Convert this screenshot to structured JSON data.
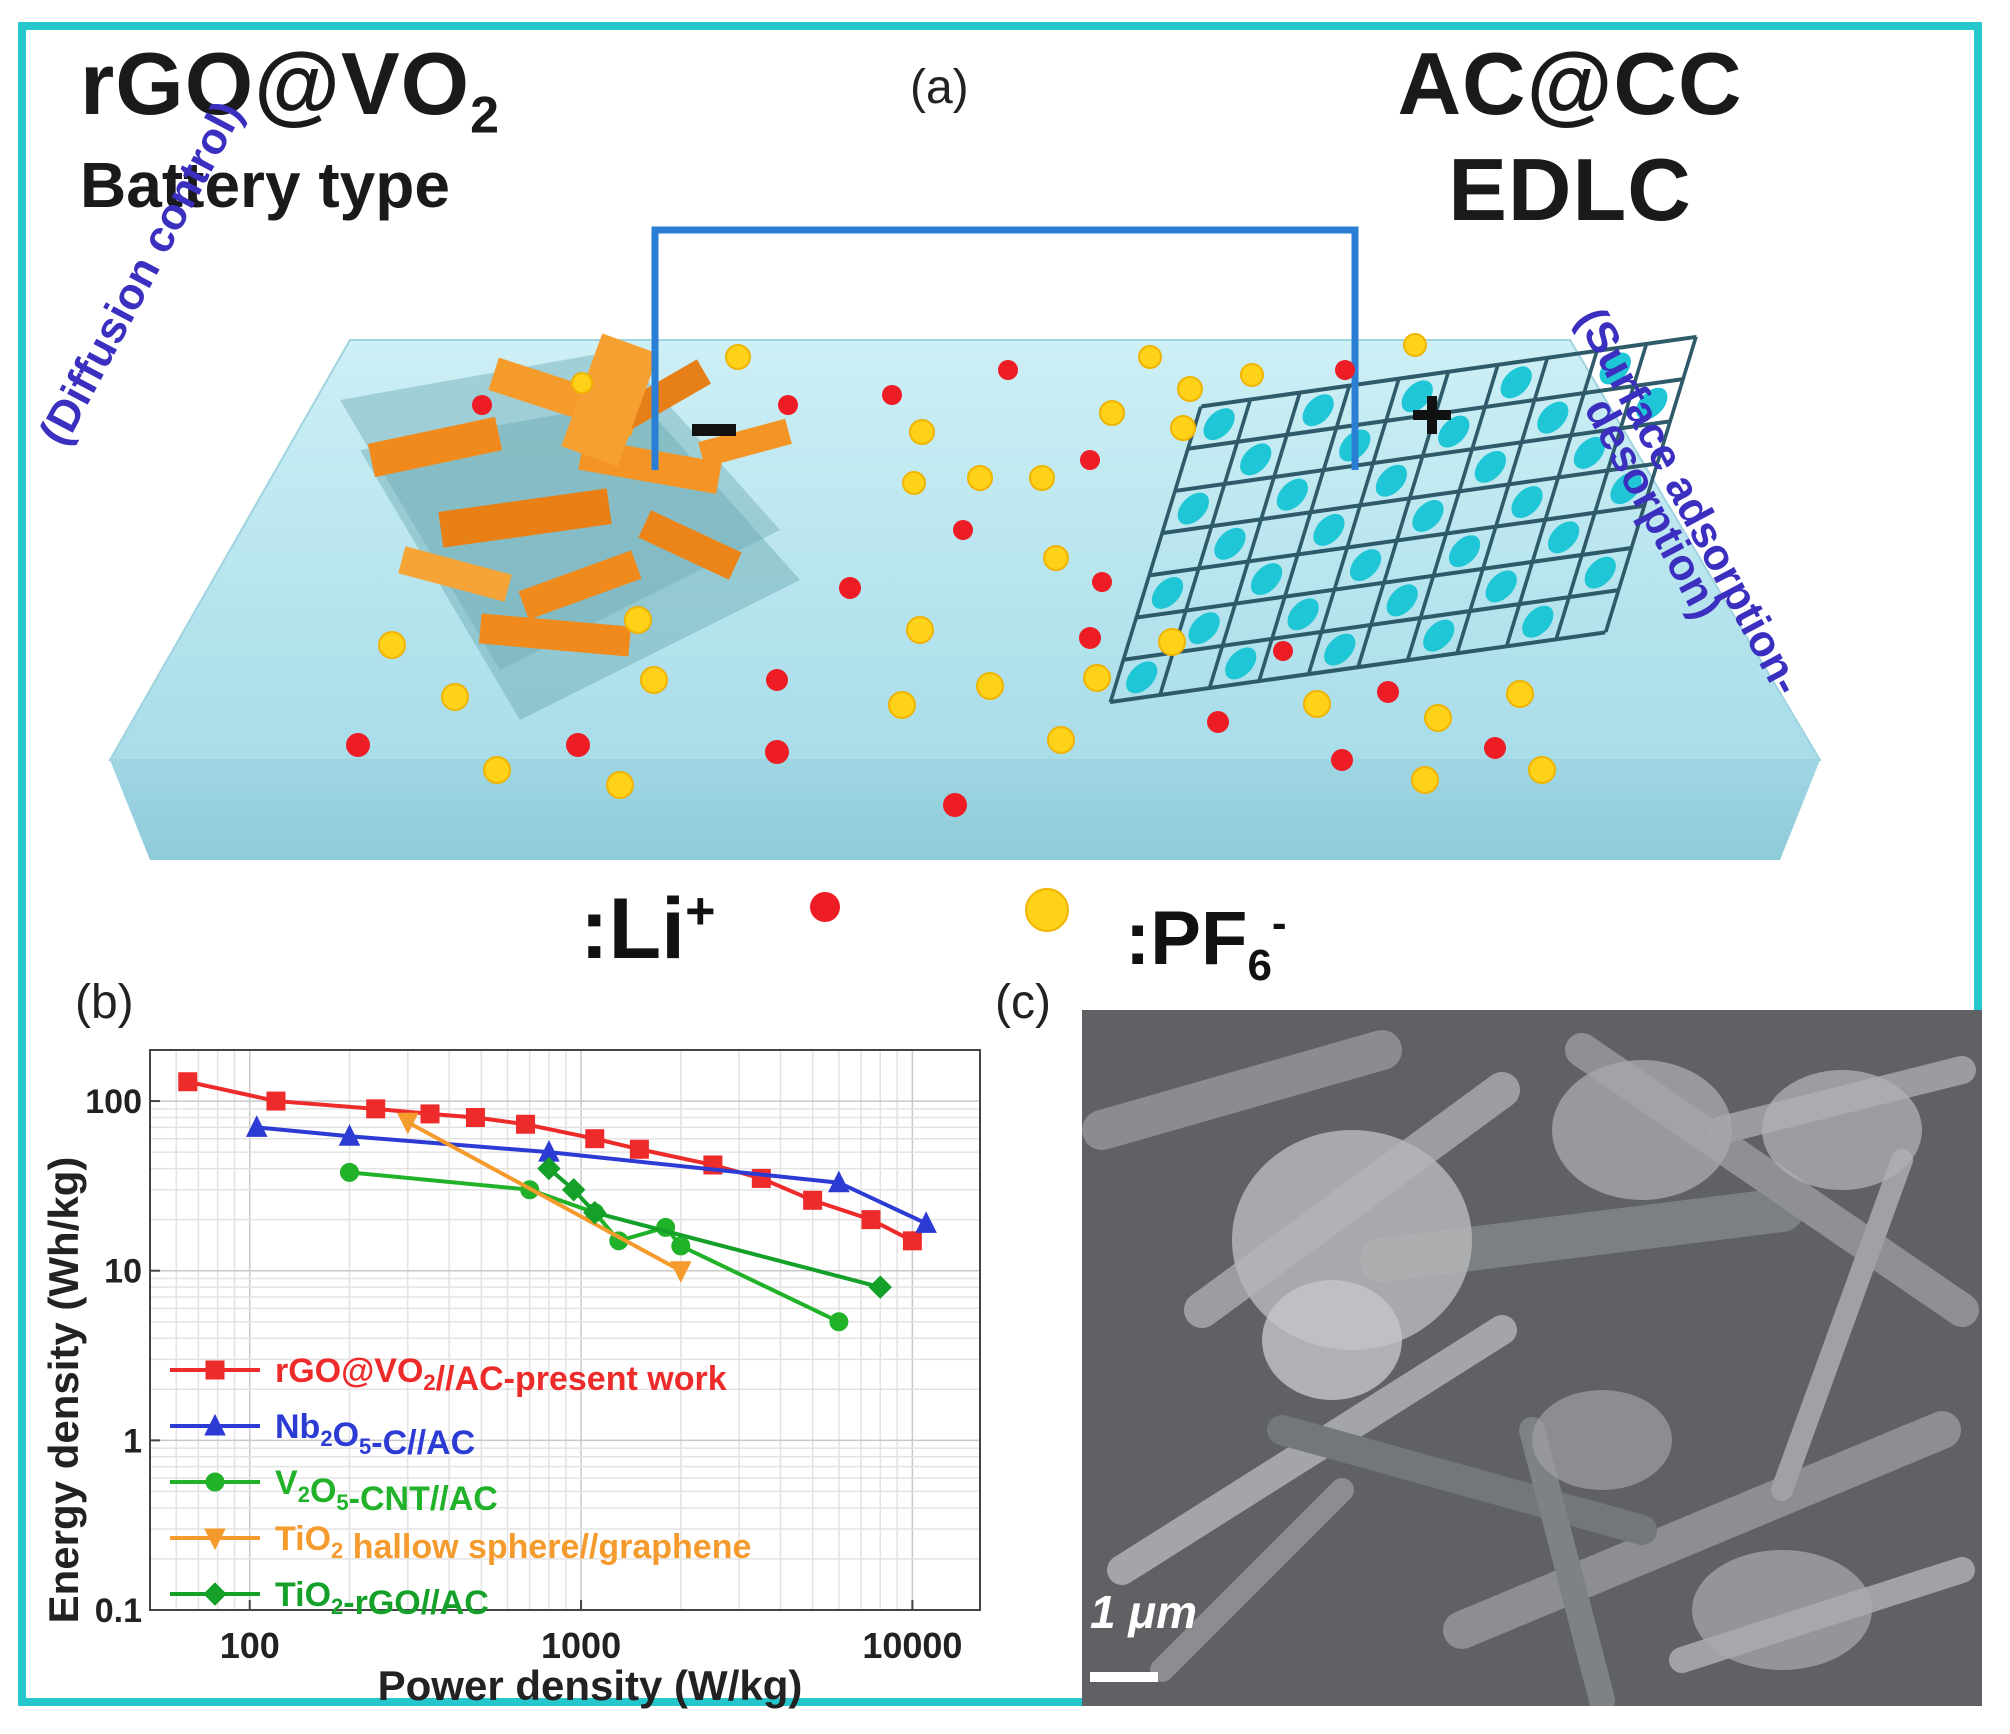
{
  "panel_a": {
    "label": "(a)",
    "left_title": "rGO@VO",
    "left_title_sub": "2",
    "left_subtitle": "Battery type",
    "right_title": "AC@CC",
    "right_subtitle": "EDLC",
    "left_side_note": "(Diffusion control)",
    "right_side_note_1": "(Surface adsorption-",
    "right_side_note_2": "desorption)",
    "minus_sign": "−",
    "plus_sign": "+",
    "legend_li": ":Li",
    "legend_li_sup": "+",
    "legend_pf": ":PF",
    "legend_pf_sub": "6",
    "legend_pf_sup": "-",
    "colors": {
      "li_ion": "#ee1c24",
      "pf6_ion": "#ffd21a",
      "wire": "#2a7fd4",
      "electrolyte": "#bfe8f0",
      "anode": "#f08a1c",
      "cathode": "#1ec6d6"
    }
  },
  "panel_b": {
    "label": "(b)",
    "chart_data": {
      "type": "line",
      "xlabel": "Power density (W/kg)",
      "ylabel": "Energy density (Wh/kg)",
      "xscale": "log",
      "yscale": "log",
      "xlim": [
        50,
        16000
      ],
      "ylim": [
        0.1,
        200
      ],
      "xticks": [
        "100",
        "1000",
        "10000"
      ],
      "yticks": [
        "0.1",
        "1",
        "10",
        "100"
      ],
      "grid": true,
      "legend_position": "lower-left",
      "series": [
        {
          "name": "rGO@VO2//AC-present work",
          "legend_text": "rGO@VO",
          "legend_sub": "2",
          "legend_rest": "//AC-present work",
          "color": "#ee2b2b",
          "marker": "square",
          "x": [
            65,
            120,
            240,
            350,
            480,
            680,
            1100,
            1500,
            2500,
            3500,
            5000,
            7500,
            10000
          ],
          "y": [
            130,
            100,
            90,
            84,
            80,
            73,
            60,
            52,
            42,
            35,
            26,
            20,
            15
          ]
        },
        {
          "name": "Nb2O5-C//AC",
          "legend_text": "Nb",
          "legend_sub": "2",
          "legend_mid": "O",
          "legend_sub2": "5",
          "legend_rest": "-C//AC",
          "color": "#2b3bd4",
          "marker": "triangle",
          "x": [
            105,
            200,
            800,
            6000,
            11000
          ],
          "y": [
            70,
            62,
            50,
            33,
            19
          ]
        },
        {
          "name": "V2O5-CNT//AC",
          "legend_text": "V",
          "legend_sub": "2",
          "legend_mid": "O",
          "legend_sub2": "5",
          "legend_rest": "-CNT//AC",
          "color": "#22b22a",
          "marker": "circle",
          "x": [
            200,
            700,
            1100,
            1300,
            1800,
            2000,
            6000
          ],
          "y": [
            38,
            30,
            22,
            15,
            18,
            14,
            5
          ]
        },
        {
          "name": "TiO2 hallow sphere//graphene",
          "legend_text": "TiO",
          "legend_sub": "2",
          "legend_rest": " hallow sphere//graphene",
          "color": "#f59a2c",
          "marker": "triangle-down",
          "x": [
            300,
            2000
          ],
          "y": [
            75,
            10
          ]
        },
        {
          "name": "TiO2-rGO//AC",
          "legend_text": "TiO",
          "legend_sub": "2",
          "legend_rest": "-rGO//AC",
          "color": "#15a02a",
          "marker": "diamond",
          "x": [
            800,
            950,
            1100,
            8000
          ],
          "y": [
            40,
            30,
            22,
            8
          ]
        }
      ]
    }
  },
  "panel_c": {
    "label": "(c)",
    "scale_bar": "1 μm"
  }
}
